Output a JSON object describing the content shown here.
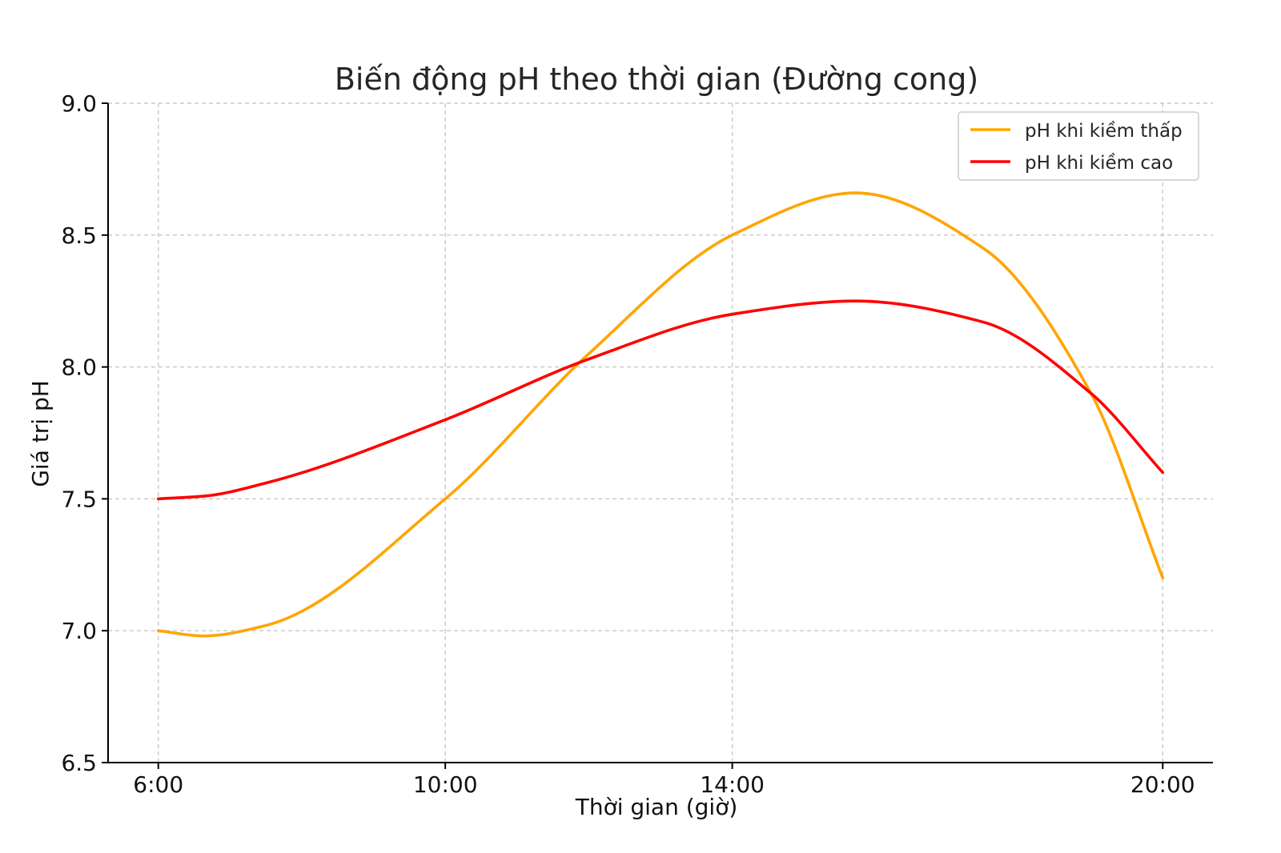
{
  "chart_data": {
    "type": "line",
    "title": "Biến động pH theo thời gian (Đường cong)",
    "xlabel": "Thời gian (giờ)",
    "ylabel": "Giá trị pH",
    "x_tick_labels": [
      "6:00",
      "10:00",
      "14:00",
      "20:00"
    ],
    "x_tick_values": [
      6,
      10,
      14,
      20
    ],
    "xlim": [
      5.3,
      20.7
    ],
    "ylim": [
      6.5,
      9.0
    ],
    "y_ticks": [
      6.5,
      7.0,
      7.5,
      8.0,
      8.5,
      9.0
    ],
    "y_tick_labels": [
      "6.5",
      "7.0",
      "7.5",
      "8.0",
      "8.5",
      "9.0"
    ],
    "grid": true,
    "legend_position": "top-right",
    "x": [
      6,
      6.63,
      7.5,
      10,
      12,
      14,
      15.72,
      17.5,
      19,
      20
    ],
    "series": [
      {
        "name": "pH khi kiềm thấp",
        "color": "#FFA500",
        "values": [
          7.0,
          6.98,
          7.02,
          7.5,
          8.05,
          8.5,
          8.66,
          8.45,
          7.9,
          7.2
        ]
      },
      {
        "name": "pH khi kiềm cao",
        "color": "#FF0000",
        "values": [
          7.5,
          7.51,
          7.56,
          7.8,
          8.03,
          8.2,
          8.25,
          8.17,
          7.9,
          7.6
        ]
      }
    ]
  }
}
